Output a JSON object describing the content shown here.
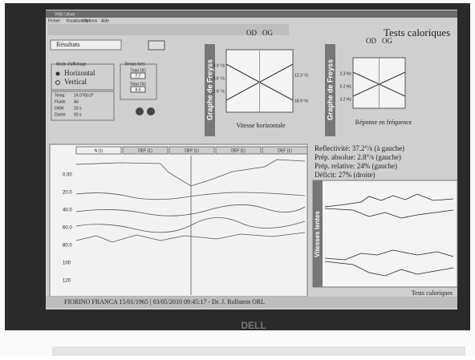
{
  "window": {
    "title": "VNG Ulmer",
    "menu": [
      "Fichier",
      "Visualisation",
      "Options",
      "Aide"
    ],
    "heading": "Tests caloriques"
  },
  "controls": {
    "dropdown": "Résultats",
    "mode_title": "Mode d'affichage",
    "modes": [
      "Horizontal",
      "Vertical"
    ],
    "totals_title": "Temps forts",
    "totals": [
      {
        "label": "Total OD",
        "value": "7.7"
      },
      {
        "label": "Total OG",
        "value": "8.6"
      }
    ],
    "params": [
      [
        "Temp.",
        "24.0°/50.0°"
      ],
      [
        "Fluide",
        "Air"
      ],
      [
        "Débit",
        "10 s"
      ],
      [
        "Durée",
        "60 s"
      ]
    ]
  },
  "freyss_speed": {
    "label": "Graphe de Freyss",
    "columns": [
      "OD",
      "OG"
    ],
    "left": [
      "9.9 °/s",
      "8.6 °/s",
      "11.6 °/s"
    ],
    "right": [
      "12.3 °/s",
      "18.9 °/s"
    ],
    "caption": "Vitesse horizontale"
  },
  "freyss_freq": {
    "label": "Graphe de Freyss",
    "columns": [
      "OD",
      "OG"
    ],
    "left": [
      "2.3 Hz",
      "0.2 Hz",
      "3.2 Hz"
    ],
    "caption": "Réponse en fréquence"
  },
  "tabs": [
    "N (1)",
    "DEF (1)",
    "DEF (1)",
    "DEF (1)",
    "DEF (1)"
  ],
  "y_labels": [
    "0.00",
    "20.0",
    "40.0",
    "60.0",
    "80.0",
    "100",
    "120"
  ],
  "results": [
    "Reflectivité: 37.2°/s (à gauche)",
    "Prép. absolue: 2.8°/s (gauche)",
    "Prép. relative: 24% (gauche)",
    "Déficit: 27% (droite)"
  ],
  "slow_label": "Vitesses lentes",
  "footer": {
    "patient": "FIORINO FRANCA  15/01/1965  |  03/05/2010 09:45:17  -  Dr. J. Rollstein ORL",
    "right": "Tests caloriques"
  },
  "brand": "DELL"
}
